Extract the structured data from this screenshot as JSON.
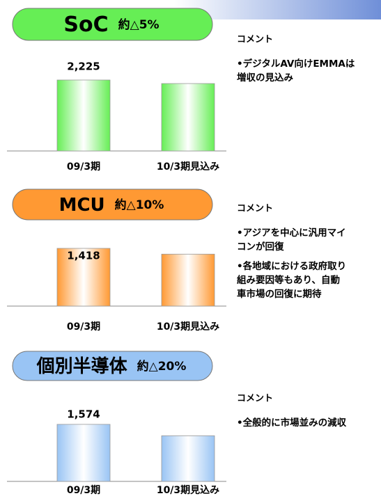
{
  "chart_data": [
    {
      "type": "bar",
      "title": "SoC",
      "subtitle": "約△5%",
      "color": "#66ee55",
      "categories": [
        "09/3期",
        "10/3期見込み"
      ],
      "values": [
        2225,
        2114
      ],
      "value_labels": [
        "2,225",
        null
      ],
      "comment_title": "コメント",
      "comments": [
        [
          "•デジタルAV向けEMMAは",
          "増収の見込み"
        ]
      ]
    },
    {
      "type": "bar",
      "title": "MCU",
      "subtitle": "約△10%",
      "color": "#ff9933",
      "categories": [
        "09/3期",
        "10/3期見込み"
      ],
      "values": [
        1418,
        1276
      ],
      "value_labels": [
        "1,418",
        null
      ],
      "comment_title": "コメント",
      "comments": [
        [
          "•アジアを中心に汎用マイ",
          "コンが回復"
        ],
        [
          "•各地域における政府取り",
          "組み要因等もあり、自動",
          "車市場の回復に期待"
        ]
      ]
    },
    {
      "type": "bar",
      "title": "個別半導体",
      "subtitle": "約△20%",
      "color": "#99c4f4",
      "categories": [
        "09/3期",
        "10/3期見込み"
      ],
      "values": [
        1574,
        1259
      ],
      "value_labels": [
        "1,574",
        null
      ],
      "comment_title": "コメント",
      "comments": [
        [
          "•全般的に市場並みの減収"
        ]
      ]
    }
  ]
}
